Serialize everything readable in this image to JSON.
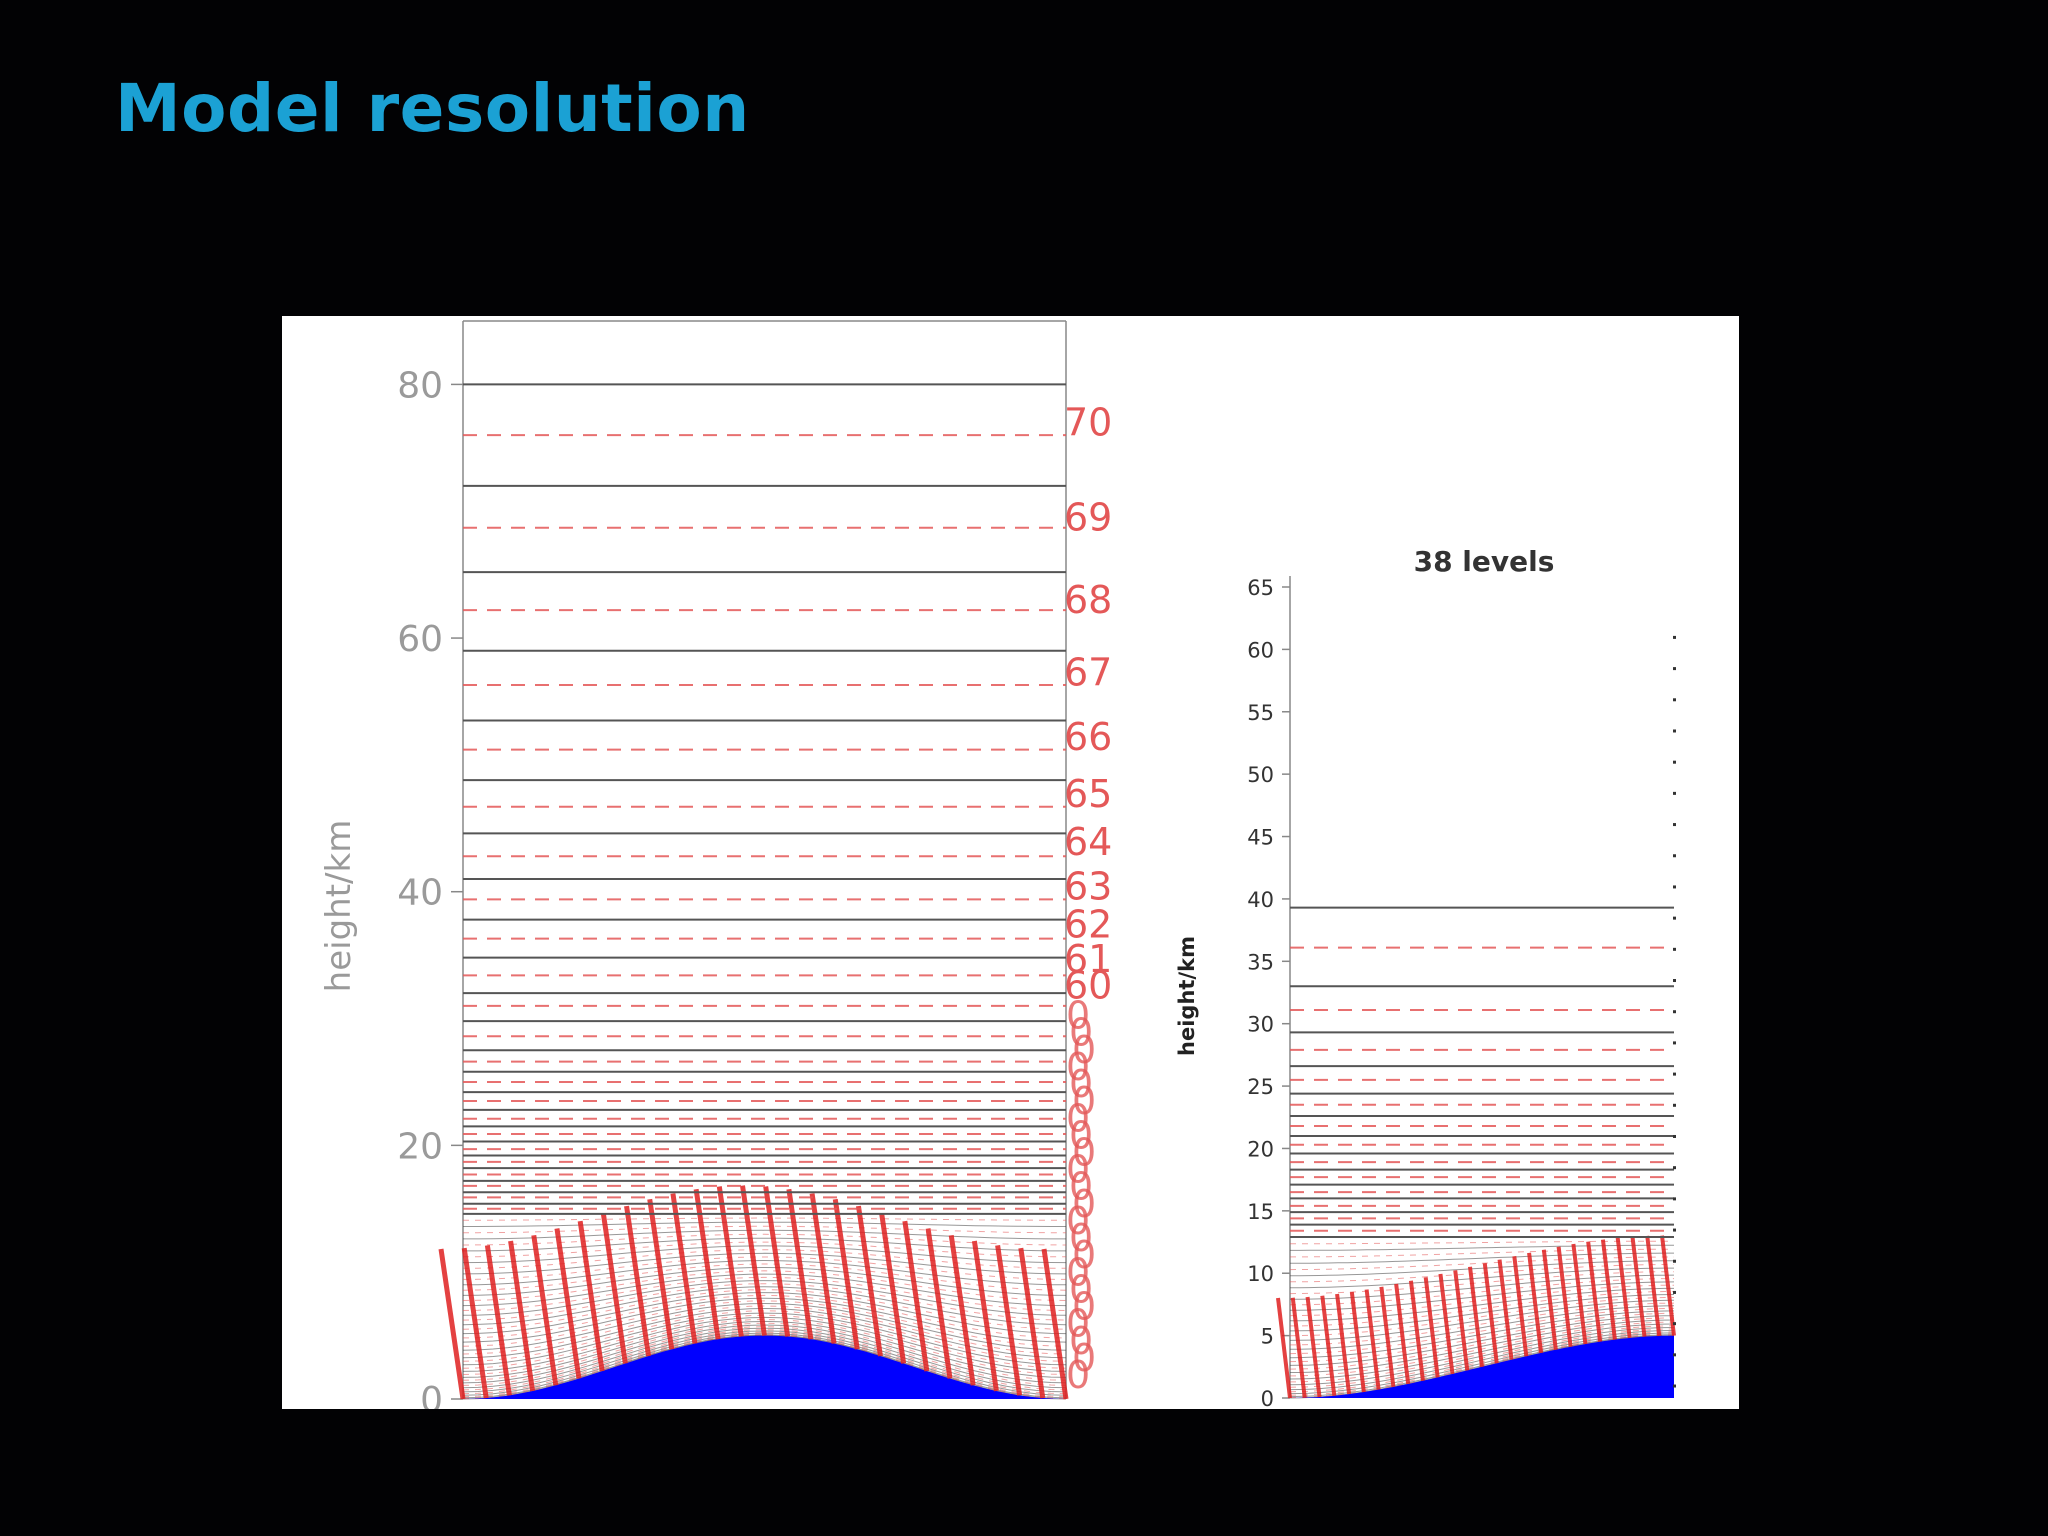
{
  "slide": {
    "title": "Model resolution"
  },
  "colors": {
    "title": "#1ba1d4",
    "background": "#020204",
    "terrain": "#0000ff",
    "full_level": "#555555",
    "half_level": "#e45858"
  },
  "chart_data": [
    {
      "type": "line",
      "title": "",
      "xlabel": "",
      "ylabel": "height/km",
      "ylim": [
        0,
        85
      ],
      "yticks": [
        0,
        20,
        40,
        60,
        80
      ],
      "terrain_peak_km": 5,
      "full_levels_km": [
        80,
        72,
        65.2,
        59,
        53.5,
        48.8,
        44.6,
        41,
        37.8,
        34.8,
        32,
        29.8,
        27.5,
        25.8,
        24.2,
        22.8,
        21.5,
        20.3,
        19.2,
        18.2,
        17.2,
        16.3,
        15.4,
        14.6
      ],
      "half_levels_km": [
        76,
        68.7,
        62.2,
        56.3,
        51.2,
        46.7,
        42.8,
        39.4,
        36.3,
        33.4,
        31,
        28.6,
        26.6,
        25,
        23.5,
        22.1,
        20.9,
        19.7,
        18.7,
        17.7,
        16.8,
        15.9,
        15
      ],
      "visible_level_labels": [
        "70",
        "69",
        "68",
        "67",
        "66",
        "65",
        "64",
        "63",
        "62",
        "61",
        "60"
      ],
      "visible_level_labels_km": [
        77,
        69.5,
        63,
        57.3,
        52.2,
        47.7,
        43.9,
        40.4,
        37.4,
        34.7,
        32.6
      ]
    },
    {
      "type": "line",
      "title": "38 levels",
      "xlabel": "",
      "ylabel": "height/km",
      "ylim": [
        0,
        65
      ],
      "yticks": [
        0,
        5,
        10,
        15,
        20,
        25,
        30,
        35,
        40,
        45,
        50,
        55,
        60,
        65
      ],
      "terrain_peak_km": 5,
      "full_levels_km": [
        39.3,
        33,
        29.3,
        26.6,
        24.4,
        22.6,
        21,
        19.6,
        18.3,
        17.1,
        16,
        14.9,
        13.9,
        12.9
      ],
      "half_levels_km": [
        36.1,
        31.1,
        27.9,
        25.5,
        23.5,
        21.8,
        20.3,
        18.9,
        17.7,
        16.5,
        15.4,
        14.4,
        13.4
      ]
    }
  ]
}
